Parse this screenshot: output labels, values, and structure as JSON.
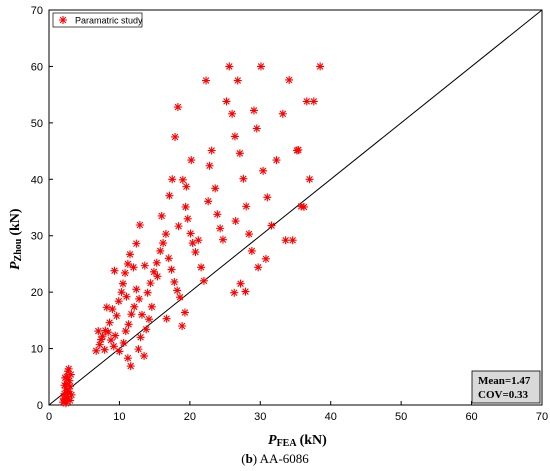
{
  "caption": {
    "letter": "b",
    "text": "AA-6086"
  },
  "chart_data": {
    "type": "scatter",
    "x_title": {
      "main": "P",
      "sub": "FEA",
      "unit": "(kN)"
    },
    "y_title": {
      "main": "P",
      "sub": "Zhou",
      "unit": "(kN)"
    },
    "xlim": [
      0,
      70
    ],
    "ylim": [
      0,
      70
    ],
    "x_ticks": [
      0,
      10,
      20,
      30,
      40,
      50,
      60,
      70
    ],
    "y_ticks": [
      0,
      10,
      20,
      30,
      40,
      50,
      60,
      70
    ],
    "grid": false,
    "legend_position": "top-left",
    "reference_line": {
      "from": [
        0,
        0
      ],
      "to": [
        70,
        70
      ]
    },
    "marker": "asterisk",
    "marker_color": "#ff0000",
    "stats": {
      "mean": "Mean=1.47",
      "cov": "COV=0.33"
    },
    "series": [
      {
        "name": "Paramatric study",
        "points": [
          [
            2.0,
            0.5
          ],
          [
            2.3,
            1.0
          ],
          [
            2.6,
            1.5
          ],
          [
            2.2,
            2.0
          ],
          [
            2.8,
            2.4
          ],
          [
            2.4,
            3.0
          ],
          [
            3.0,
            3.3
          ],
          [
            2.5,
            3.8
          ],
          [
            2.9,
            4.3
          ],
          [
            2.3,
            4.8
          ],
          [
            3.1,
            5.4
          ],
          [
            2.7,
            6.0
          ],
          [
            2.4,
            0.3
          ],
          [
            3.0,
            0.8
          ],
          [
            2.1,
            1.2
          ],
          [
            2.7,
            2.2
          ],
          [
            3.2,
            1.8
          ],
          [
            2.5,
            5.0
          ],
          [
            2.8,
            6.4
          ],
          [
            2.2,
            3.5
          ],
          [
            6.7,
            9.6
          ],
          [
            7.2,
            10.7
          ],
          [
            7.6,
            12.2
          ],
          [
            8.0,
            13.2
          ],
          [
            7.4,
            11.6
          ],
          [
            8.4,
            12.9
          ],
          [
            8.8,
            11.5
          ],
          [
            7.9,
            9.8
          ],
          [
            9.2,
            10.4
          ],
          [
            8.6,
            14.6
          ],
          [
            9.6,
            15.8
          ],
          [
            9.0,
            17.0
          ],
          [
            9.9,
            18.4
          ],
          [
            10.3,
            20.0
          ],
          [
            9.4,
            12.3
          ],
          [
            10.0,
            9.5
          ],
          [
            10.6,
            11.0
          ],
          [
            10.9,
            13.1
          ],
          [
            11.3,
            14.3
          ],
          [
            11.7,
            16.1
          ],
          [
            12.1,
            17.4
          ],
          [
            11.0,
            19.2
          ],
          [
            10.5,
            21.5
          ],
          [
            10.8,
            23.4
          ],
          [
            11.2,
            25.0
          ],
          [
            11.5,
            26.7
          ],
          [
            12.0,
            24.4
          ],
          [
            12.4,
            20.5
          ],
          [
            12.8,
            18.8
          ],
          [
            13.2,
            16.0
          ],
          [
            11.6,
            6.9
          ],
          [
            11.2,
            8.3
          ],
          [
            12.7,
            9.9
          ],
          [
            13.5,
            8.7
          ],
          [
            13.0,
            12.0
          ],
          [
            13.8,
            13.4
          ],
          [
            14.2,
            15.2
          ],
          [
            14.6,
            17.4
          ],
          [
            14.0,
            19.9
          ],
          [
            14.4,
            21.6
          ],
          [
            14.9,
            23.6
          ],
          [
            15.3,
            25.2
          ],
          [
            15.8,
            27.3
          ],
          [
            16.2,
            28.7
          ],
          [
            16.6,
            30.3
          ],
          [
            16.0,
            33.5
          ],
          [
            17.0,
            26.0
          ],
          [
            17.4,
            24.0
          ],
          [
            17.8,
            21.8
          ],
          [
            18.2,
            20.3
          ],
          [
            18.6,
            19.1
          ],
          [
            18.9,
            14.0
          ],
          [
            19.3,
            16.4
          ],
          [
            17.1,
            37.1
          ],
          [
            17.5,
            40.0
          ],
          [
            17.9,
            47.5
          ],
          [
            18.3,
            52.8
          ],
          [
            19.0,
            39.9
          ],
          [
            19.4,
            35.1
          ],
          [
            19.7,
            33.0
          ],
          [
            20.1,
            30.4
          ],
          [
            20.4,
            28.7
          ],
          [
            20.8,
            27.1
          ],
          [
            21.2,
            29.2
          ],
          [
            21.6,
            24.4
          ],
          [
            22.0,
            22.0
          ],
          [
            22.3,
            57.5
          ],
          [
            22.8,
            42.4
          ],
          [
            23.1,
            45.1
          ],
          [
            23.6,
            38.4
          ],
          [
            23.9,
            33.8
          ],
          [
            24.3,
            31.3
          ],
          [
            24.7,
            29.3
          ],
          [
            25.2,
            53.8
          ],
          [
            25.6,
            60.0
          ],
          [
            26.0,
            51.6
          ],
          [
            26.4,
            47.6
          ],
          [
            26.8,
            57.5
          ],
          [
            27.1,
            44.6
          ],
          [
            27.6,
            40.1
          ],
          [
            28.0,
            35.2
          ],
          [
            28.4,
            30.3
          ],
          [
            28.8,
            27.3
          ],
          [
            27.2,
            21.5
          ],
          [
            27.9,
            20.1
          ],
          [
            26.3,
            19.9
          ],
          [
            29.1,
            52.2
          ],
          [
            29.5,
            49.0
          ],
          [
            30.1,
            60.0
          ],
          [
            30.4,
            41.5
          ],
          [
            31.0,
            36.8
          ],
          [
            31.6,
            31.8
          ],
          [
            32.3,
            43.4
          ],
          [
            33.2,
            51.6
          ],
          [
            34.1,
            57.6
          ],
          [
            34.6,
            29.2
          ],
          [
            35.4,
            45.2
          ],
          [
            35.8,
            35.2
          ],
          [
            36.6,
            53.8
          ],
          [
            37.0,
            40.0
          ],
          [
            37.6,
            53.8
          ],
          [
            38.5,
            60.0
          ],
          [
            36.2,
            35.1
          ],
          [
            35.2,
            45.1
          ],
          [
            33.6,
            29.2
          ],
          [
            30.8,
            25.9
          ],
          [
            29.7,
            24.4
          ],
          [
            26.5,
            32.6
          ],
          [
            22.6,
            36.1
          ],
          [
            20.2,
            43.4
          ],
          [
            19.5,
            38.7
          ],
          [
            18.4,
            31.7
          ],
          [
            15.4,
            22.8
          ],
          [
            16.7,
            15.3
          ],
          [
            13.6,
            24.7
          ],
          [
            12.4,
            28.6
          ],
          [
            12.9,
            31.9
          ],
          [
            9.3,
            23.8
          ],
          [
            8.2,
            17.3
          ],
          [
            7.0,
            13.1
          ]
        ]
      }
    ]
  }
}
